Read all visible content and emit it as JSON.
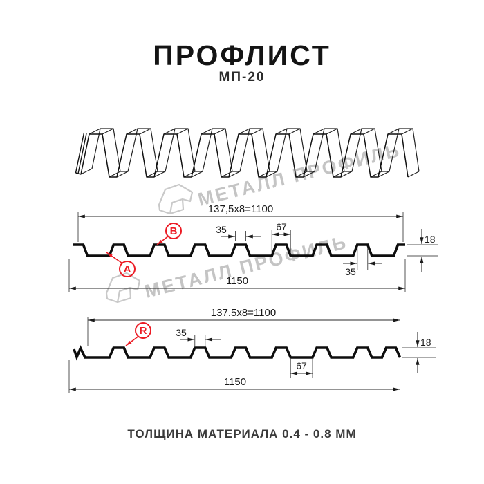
{
  "header": {
    "title": "ПРОФЛИСТ",
    "subtitle": "МП-20"
  },
  "watermark": {
    "brand": "МЕТАЛЛ ПРОФИЛЬ"
  },
  "colors": {
    "accent_red": "#ec1b24",
    "line": "#1a1a1a",
    "watermark_gray": "#c4c4c4"
  },
  "profile_top": {
    "coverage_width": "137,5x8=1100",
    "overall_width": "1150",
    "rib_top_width": "35",
    "rib_base_width": "67",
    "profile_height": "18",
    "rib_top_width_right": "35",
    "marker_a": "A",
    "marker_b": "B"
  },
  "profile_bottom": {
    "coverage_width": "137.5x8=1100",
    "overall_width": "1150",
    "rib_top_width": "35",
    "valley_width": "67",
    "profile_height": "18",
    "marker_r": "R"
  },
  "footer": {
    "note": "ТОЛЩИНА МАТЕРИАЛА 0.4 - 0.8 ММ"
  }
}
